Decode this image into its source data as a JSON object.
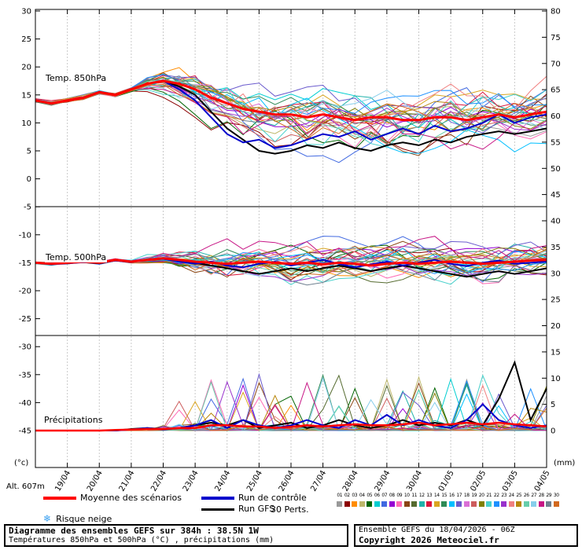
{
  "panels": {
    "t850_label": "Temp. 850hPa",
    "t500_label": "Temp. 500hPa",
    "precip_label": "Précipitations"
  },
  "legend": {
    "mean_label": "Moyenne des scénarios",
    "control_label": "Run de contrôle",
    "gfs_label": "Run GFS",
    "perts_label": "30 Perts.",
    "snow_label": "Risque neige",
    "snow_icon": "❄",
    "mean_color": "#ff0000",
    "control_color": "#0000cc",
    "gfs_color": "#000000"
  },
  "footer": {
    "title": "Diagramme des ensembles GEFS sur 384h : 38.5N 1W",
    "subtitle": "Températures 850hPa et 500hPa (°C) , précipitations (mm)",
    "run_info": "Ensemble GEFS du 18/04/2026 - 06Z",
    "copyright": "Copyright 2026 Meteociel.fr"
  },
  "chart_data": {
    "type": "line",
    "title": "Diagramme des ensembles GEFS sur 384h : 38.5N 1W",
    "left_axis_unit": "(°c)",
    "right_axis_unit": "(mm)",
    "altitude_label": "Alt. 607m",
    "left_axis_range": [
      -45,
      30
    ],
    "right_axis_range": [
      0,
      80
    ],
    "left_ticks": [
      30,
      25,
      20,
      15,
      10,
      5,
      0,
      -5,
      -10,
      -15,
      -20,
      -25,
      -30,
      -35,
      -40,
      -45
    ],
    "right_ticks": [
      80,
      75,
      70,
      65,
      60,
      55,
      50,
      45,
      40,
      35,
      30,
      25,
      20,
      15,
      10,
      5,
      0
    ],
    "x_labels": [
      "19/04",
      "20/04",
      "21/04",
      "22/04",
      "23/04",
      "24/04",
      "25/04",
      "26/04",
      "27/04",
      "28/04",
      "29/04",
      "30/04",
      "01/05",
      "02/05",
      "03/05",
      "04/05"
    ],
    "x_hours_step": 12,
    "x_count": 33,
    "series": {
      "mean_850": [
        14,
        13.5,
        14,
        14.5,
        15.5,
        15,
        16,
        17,
        17.5,
        17,
        16,
        14.5,
        13.5,
        12.5,
        12,
        11.5,
        11.5,
        11,
        11.5,
        11,
        10.5,
        11,
        11,
        10.5,
        10.5,
        11,
        11,
        10.5,
        11,
        11.5,
        11,
        11.5,
        12
      ],
      "control_850": [
        14,
        13.5,
        14,
        14.5,
        15.5,
        15,
        16,
        17,
        17.5,
        16,
        14,
        11,
        8,
        6.5,
        7,
        5.5,
        6,
        7,
        8,
        7.5,
        8.5,
        7,
        8,
        9,
        8,
        9.5,
        8.5,
        9,
        10,
        11.5,
        10,
        11,
        11.5
      ],
      "gfs_850": [
        14,
        13.5,
        14,
        14.5,
        15.5,
        15,
        16,
        17,
        17.5,
        16.5,
        15,
        12,
        9,
        7,
        5,
        4.5,
        5,
        6,
        5.5,
        6.5,
        5.5,
        5,
        6,
        6.5,
        6,
        7,
        6.5,
        7.5,
        8,
        8.5,
        8,
        8.5,
        9
      ],
      "mean_500": [
        -15,
        -15.2,
        -15,
        -14.8,
        -15,
        -14.5,
        -14.8,
        -14.5,
        -14.2,
        -14.5,
        -14.8,
        -15,
        -15.2,
        -15,
        -14.8,
        -15,
        -15.2,
        -15,
        -15.3,
        -15,
        -15.2,
        -15.5,
        -15.2,
        -15,
        -15.2,
        -15,
        -14.8,
        -15,
        -15.2,
        -15,
        -14.8,
        -14.6,
        -14.5
      ],
      "control_500": [
        -15,
        -15.3,
        -15.1,
        -14.9,
        -15,
        -14.6,
        -14.9,
        -14.4,
        -14.3,
        -14.8,
        -15.2,
        -14.8,
        -15.5,
        -15.8,
        -15.2,
        -14.8,
        -15.5,
        -15,
        -14.5,
        -15.2,
        -15.8,
        -15.3,
        -14.8,
        -15.5,
        -15,
        -14.5,
        -15.2,
        -15.6,
        -15,
        -14.6,
        -15.2,
        -15,
        -14.8
      ],
      "gfs_500": [
        -15,
        -15.2,
        -15,
        -14.9,
        -15.1,
        -14.6,
        -14.8,
        -14.5,
        -14.3,
        -14.6,
        -15,
        -15.5,
        -16,
        -16.5,
        -17,
        -16.5,
        -16,
        -16.5,
        -16,
        -15.5,
        -16,
        -16.5,
        -16,
        -15.5,
        -16,
        -16.5,
        -17,
        -17.5,
        -17,
        -16.5,
        -17,
        -16.5,
        -16
      ],
      "mean_precip": [
        0,
        0,
        0,
        0,
        0,
        0.1,
        0.2,
        0.3,
        0.3,
        0.5,
        0.5,
        1,
        1,
        0.8,
        0.8,
        0.5,
        0.7,
        1,
        0.8,
        1,
        1.2,
        1,
        1,
        1.2,
        1.5,
        1,
        1.2,
        1.5,
        1.2,
        1.5,
        1.2,
        1,
        0.8
      ],
      "control_precip": [
        0,
        0,
        0,
        0,
        0,
        0,
        0.2,
        0.5,
        0.2,
        0.5,
        1,
        2,
        0.5,
        2,
        1,
        0.5,
        1,
        2,
        1,
        0.5,
        2,
        1,
        3,
        1,
        2,
        1,
        0.5,
        2,
        5,
        2,
        1,
        0.5,
        1
      ],
      "gfs_precip": [
        0,
        0,
        0,
        0,
        0,
        0,
        0.3,
        0.5,
        0.3,
        0.5,
        1,
        1.5,
        1,
        2,
        0.5,
        1,
        1.5,
        0.5,
        1,
        2,
        1,
        0.5,
        1,
        2,
        1,
        1.5,
        1,
        2,
        1,
        6,
        13,
        2,
        8
      ]
    },
    "members": {
      "count": 30,
      "labels": [
        "01",
        "02",
        "03",
        "04",
        "05",
        "06",
        "07",
        "08",
        "09",
        "10",
        "11",
        "12",
        "13",
        "14",
        "15",
        "16",
        "17",
        "18",
        "19",
        "20",
        "21",
        "22",
        "23",
        "24",
        "25",
        "26",
        "27",
        "28",
        "29",
        "30"
      ],
      "colors": [
        "#999999",
        "#8b0000",
        "#ff8c00",
        "#bdb76b",
        "#006400",
        "#00ced1",
        "#4169e1",
        "#9400d3",
        "#ff69b4",
        "#8b4513",
        "#556b2f",
        "#20b2aa",
        "#dc143c",
        "#daa520",
        "#2e8b57",
        "#00bfff",
        "#6a5acd",
        "#da70d6",
        "#cd5c5c",
        "#808000",
        "#48d1cc",
        "#1e90ff",
        "#9932cc",
        "#f08080",
        "#b8860b",
        "#66cdaa",
        "#87ceeb",
        "#c71585",
        "#708090",
        "#d2691e"
      ],
      "note": "ensemble spaghetti members drawn around mean with time-growing spread"
    }
  }
}
